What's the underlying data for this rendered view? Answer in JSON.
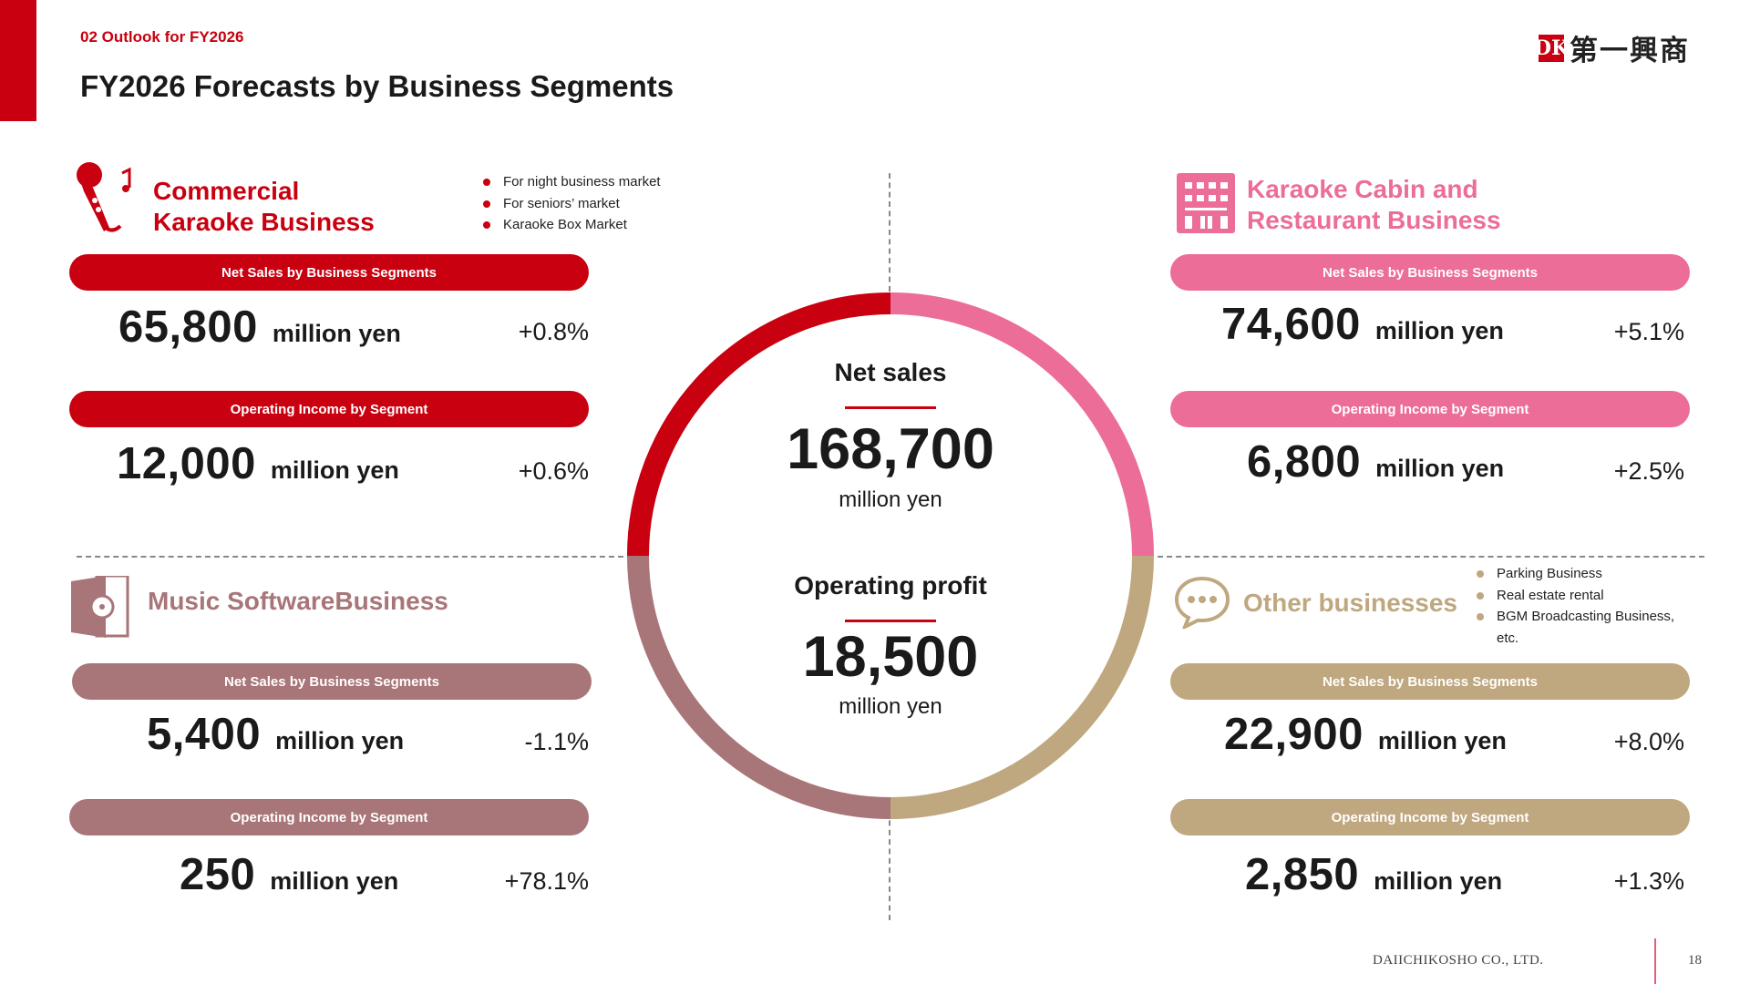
{
  "header": {
    "section_label": "02 Outlook for FY2026",
    "title": "FY2026 Forecasts by Business Segments",
    "logo_mark": "DK",
    "logo_text": "第一興商"
  },
  "colors": {
    "commercial": "#c8000f",
    "cabin": "#ec6d98",
    "music": "#a87578",
    "other": "#bfa77f"
  },
  "segments": {
    "commercial": {
      "title_line1": "Commercial",
      "title_line2": "Karaoke Business",
      "icon": "microphone-icon",
      "bullets": [
        "For night business market",
        "For seniors’ market",
        "Karaoke Box Market"
      ],
      "sales_label": "Net Sales by Business Segments",
      "sales_value": "65,800",
      "sales_unit": "million yen",
      "sales_change": "+0.8%",
      "income_label": "Operating Income by Segment",
      "income_value": "12,000",
      "income_unit": "million yen",
      "income_change": "+0.6%"
    },
    "cabin": {
      "title_line1": "Karaoke Cabin and",
      "title_line2": "Restaurant Business",
      "icon": "building-icon",
      "sales_label": "Net Sales by Business Segments",
      "sales_value": "74,600",
      "sales_unit": "million yen",
      "sales_change": "+5.1%",
      "income_label": "Operating Income by Segment",
      "income_value": "6,800",
      "income_unit": "million yen",
      "income_change": "+2.5%"
    },
    "music": {
      "title": "Music SoftwareBusiness",
      "icon": "music-disc-icon",
      "sales_label": "Net Sales by Business Segments",
      "sales_value": "5,400",
      "sales_unit": "million yen",
      "sales_change": "-1.1%",
      "income_label": "Operating Income by Segment",
      "income_value": "250",
      "income_unit": "million yen",
      "income_change": "+78.1%"
    },
    "other": {
      "title": "Other businesses",
      "icon": "speech-bubble-icon",
      "bullets": [
        "Parking Business",
        "Real estate rental",
        "BGM Broadcasting Business,",
        "etc."
      ],
      "sales_label": "Net Sales by Business Segments",
      "sales_value": "22,900",
      "sales_unit": "million yen",
      "sales_change": "+8.0%",
      "income_label": "Operating Income by Segment",
      "income_value": "2,850",
      "income_unit": "million yen",
      "income_change": "+1.3%"
    }
  },
  "center": {
    "sales_label": "Net sales",
    "sales_value": "168,700",
    "sales_unit": "million yen",
    "profit_label": "Operating profit",
    "profit_value": "18,500",
    "profit_unit": "million yen"
  },
  "footer": {
    "company": "DAIICHIKOSHO CO., LTD.",
    "page": "18"
  }
}
